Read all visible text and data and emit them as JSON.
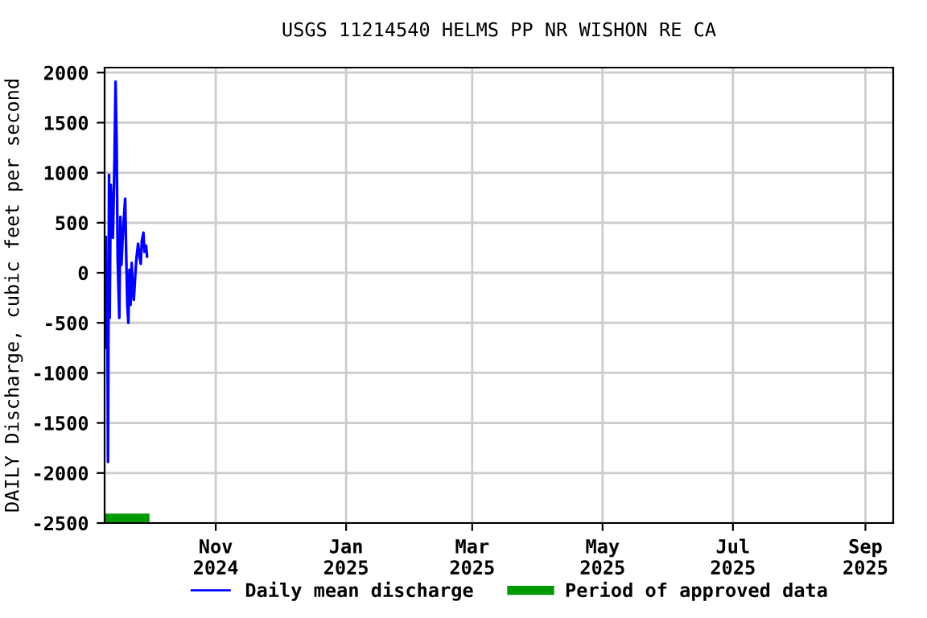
{
  "chart_data": {
    "type": "line",
    "title": "USGS 11214540 HELMS PP NR WISHON RE CA",
    "ylabel": "DAILY Discharge, cubic feet per second",
    "series": [
      {
        "name": "Daily mean discharge",
        "color": "#0000ff",
        "x": [
          "2024-09-10T14:00",
          "2024-09-10T20:00",
          "2024-09-11T08:00",
          "2024-09-11T14:00",
          "2024-09-12T02:00",
          "2024-09-12T09:00",
          "2024-09-12T21:00",
          "2024-09-13T09:00",
          "2024-09-13T21:00",
          "2024-09-14T15:00",
          "2024-09-15T03:00",
          "2024-09-15T15:00",
          "2024-09-16T03:00",
          "2024-09-16T21:00",
          "2024-09-17T09:00",
          "2024-09-17T21:00",
          "2024-09-18T09:00",
          "2024-09-19T03:00",
          "2024-09-19T15:00",
          "2024-09-20T03:00",
          "2024-09-20T15:00",
          "2024-09-21T03:00",
          "2024-09-21T15:00",
          "2024-09-22T04:00",
          "2024-09-22T16:00",
          "2024-09-23T04:00",
          "2024-09-23T16:00",
          "2024-09-24T10:00",
          "2024-09-24T22:00",
          "2024-09-25T16:00",
          "2024-09-26T10:00",
          "2024-09-26T22:00",
          "2024-09-27T10:00",
          "2024-09-28T04:00",
          "2024-09-28T16:00",
          "2024-09-29T10:00",
          "2024-09-29T22:00"
        ],
        "values": [
          370,
          -750,
          -450,
          -1890,
          980,
          -450,
          880,
          640,
          350,
          1120,
          1910,
          1300,
          130,
          -450,
          560,
          80,
          320,
          580,
          740,
          160,
          -320,
          -500,
          30,
          -320,
          100,
          -160,
          -270,
          0,
          150,
          290,
          150,
          90,
          320,
          400,
          210,
          270,
          150
        ]
      },
      {
        "name": "Period of approved data",
        "color": "#009900",
        "x": [
          "2024-09-10",
          "2024-10-01"
        ],
        "values": [
          -2450,
          -2450
        ]
      }
    ],
    "xlim": [
      "2024-09-10",
      "2025-09-14"
    ],
    "xticks": [
      {
        "value": "2024-11-01",
        "label": "Nov\n2024"
      },
      {
        "value": "2025-01-01",
        "label": "Jan\n2025"
      },
      {
        "value": "2025-03-01",
        "label": "Mar\n2025"
      },
      {
        "value": "2025-05-01",
        "label": "May\n2025"
      },
      {
        "value": "2025-07-01",
        "label": "Jul\n2025"
      },
      {
        "value": "2025-09-01",
        "label": "Sep\n2025"
      }
    ],
    "ylim": [
      -2500,
      2050
    ],
    "yticks": [
      -2500,
      -2000,
      -1500,
      -1000,
      -500,
      0,
      500,
      1000,
      1500,
      2000
    ],
    "grid": true,
    "legend": "bottom"
  }
}
